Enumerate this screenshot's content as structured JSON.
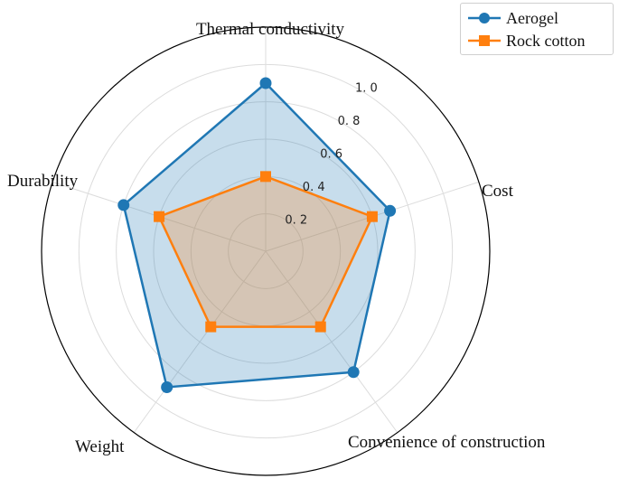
{
  "chart_data": {
    "type": "radar",
    "axes": [
      "Thermal conductivity",
      "Cost",
      "Convenience of construction",
      "Weight",
      "Durability"
    ],
    "radial_ticks": [
      "0. 2",
      "0. 4",
      "0. 6",
      "0. 8",
      "1. 0"
    ],
    "radial_tick_values": [
      0.2,
      0.4,
      0.6,
      0.8,
      1.0
    ],
    "rlim": [
      0,
      1.2
    ],
    "grid": true,
    "legend_position": "top-right",
    "series": [
      {
        "name": "Aerogel",
        "values": [
          0.9,
          0.7,
          0.8,
          0.9,
          0.8
        ],
        "color": "#1f77b4",
        "marker": "circle"
      },
      {
        "name": "Rock cotton",
        "values": [
          0.4,
          0.6,
          0.5,
          0.5,
          0.6
        ],
        "color": "#ff7f0e",
        "marker": "square"
      }
    ]
  },
  "legend": {
    "items": [
      {
        "label": "Aerogel"
      },
      {
        "label": "Rock cotton"
      }
    ]
  }
}
